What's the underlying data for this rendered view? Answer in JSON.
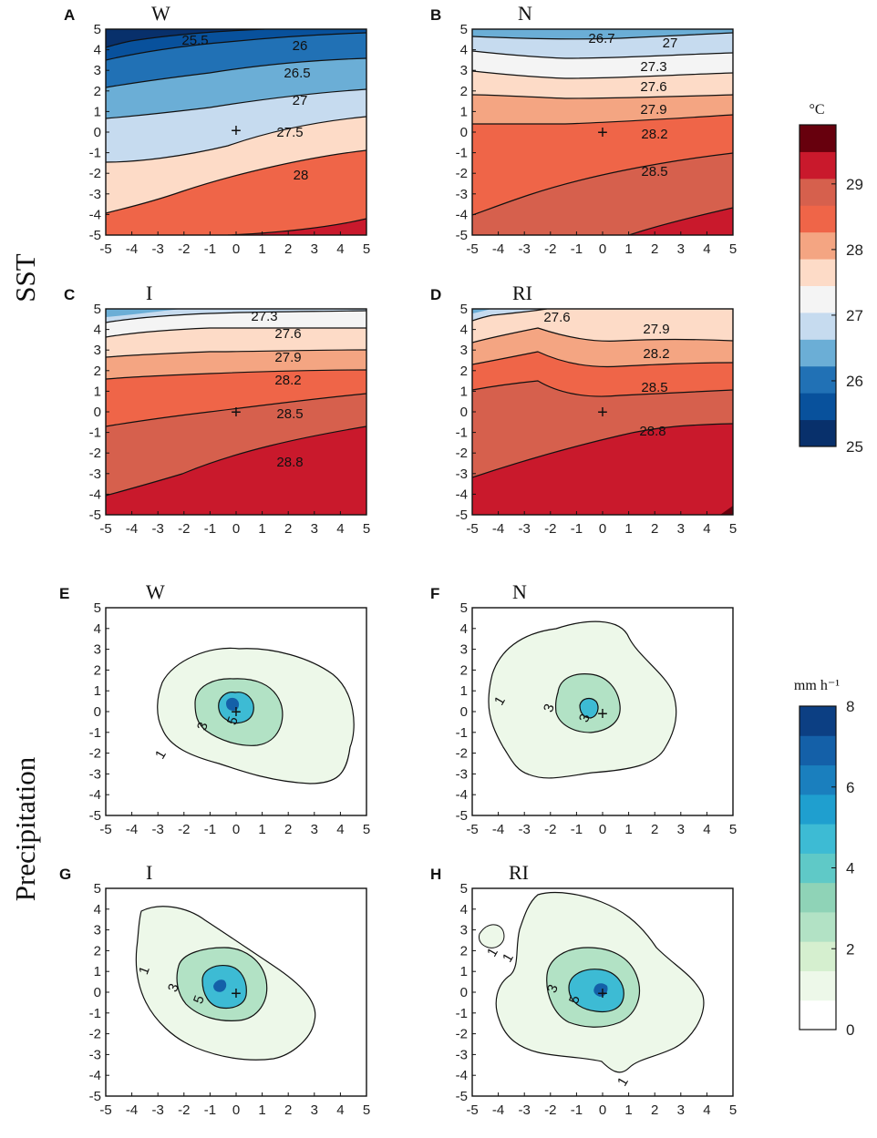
{
  "row_labels": {
    "sst": "SST",
    "precip": "Precipitation"
  },
  "colorbars": {
    "sst": {
      "unit": "°C",
      "ticks": [
        "25",
        "26",
        "27",
        "28",
        "29"
      ],
      "colors": [
        "#08306b",
        "#08519c",
        "#2171b5",
        "#6baed6",
        "#c6dbef",
        "#f4f4f4",
        "#fddbc7",
        "#f4a582",
        "#ef6548",
        "#d6604d",
        "#c9192c",
        "#67000d"
      ]
    },
    "precip": {
      "unit": "mm h⁻¹",
      "ticks": [
        "0",
        "2",
        "4",
        "6",
        "8"
      ],
      "colors": [
        "#ffffff",
        "#edf8e9",
        "#d5efcf",
        "#b2e2c5",
        "#8fd3b7",
        "#5fc9c7",
        "#3dbbd4",
        "#1f9fcf",
        "#1a7fbe",
        "#1460a8",
        "#0c3f83"
      ]
    }
  },
  "chart_data": [
    {
      "type": "contour",
      "panel": "A",
      "title": "W",
      "variable": "SST",
      "xlim": [
        -5,
        5
      ],
      "ylim": [
        -5,
        5
      ],
      "x_ticks": [
        "-5",
        "-4",
        "-3",
        "-2",
        "-1",
        "0",
        "1",
        "2",
        "3",
        "4",
        "5"
      ],
      "y_ticks": [
        "5",
        "4",
        "3",
        "2",
        "1",
        "0",
        "-1",
        "-2",
        "-3",
        "-4",
        "-5"
      ],
      "contour_labels": [
        "25.5",
        "26",
        "26.5",
        "27",
        "27.5",
        "28"
      ],
      "center_marker": "+"
    },
    {
      "type": "contour",
      "panel": "B",
      "title": "N",
      "variable": "SST",
      "xlim": [
        -5,
        5
      ],
      "ylim": [
        -5,
        5
      ],
      "x_ticks": [
        "-5",
        "-4",
        "-3",
        "-2",
        "-1",
        "0",
        "1",
        "2",
        "3",
        "4",
        "5"
      ],
      "y_ticks": [
        "5",
        "4",
        "3",
        "2",
        "1",
        "0",
        "-1",
        "-2",
        "-3",
        "-4",
        "-5"
      ],
      "contour_labels": [
        "26.7",
        "27",
        "27.3",
        "27.6",
        "27.9",
        "28.2",
        "28.5"
      ],
      "center_marker": "+"
    },
    {
      "type": "contour",
      "panel": "C",
      "title": "I",
      "variable": "SST",
      "xlim": [
        -5,
        5
      ],
      "ylim": [
        -5,
        5
      ],
      "x_ticks": [
        "-5",
        "-4",
        "-3",
        "-2",
        "-1",
        "0",
        "1",
        "2",
        "3",
        "4",
        "5"
      ],
      "y_ticks": [
        "5",
        "4",
        "3",
        "2",
        "1",
        "0",
        "-1",
        "-2",
        "-3",
        "-4",
        "-5"
      ],
      "contour_labels": [
        "27.3",
        "27.6",
        "27.9",
        "28.2",
        "28.5",
        "28.8"
      ],
      "center_marker": "+"
    },
    {
      "type": "contour",
      "panel": "D",
      "title": "RI",
      "variable": "SST",
      "xlim": [
        -5,
        5
      ],
      "ylim": [
        -5,
        5
      ],
      "x_ticks": [
        "-5",
        "-4",
        "-3",
        "-2",
        "-1",
        "0",
        "1",
        "2",
        "3",
        "4",
        "5"
      ],
      "y_ticks": [
        "5",
        "4",
        "3",
        "2",
        "1",
        "0",
        "-1",
        "-2",
        "-3",
        "-4",
        "-5"
      ],
      "contour_labels": [
        "27.6",
        "27.9",
        "28.2",
        "28.5",
        "28.8"
      ],
      "center_marker": "+"
    },
    {
      "type": "contour",
      "panel": "E",
      "title": "W",
      "variable": "Precipitation",
      "xlim": [
        -5,
        5
      ],
      "ylim": [
        -5,
        5
      ],
      "x_ticks": [
        "-5",
        "-4",
        "-3",
        "-2",
        "-1",
        "0",
        "1",
        "2",
        "3",
        "4",
        "5"
      ],
      "y_ticks": [
        "5",
        "4",
        "3",
        "2",
        "1",
        "0",
        "-1",
        "-2",
        "-3",
        "-4",
        "-5"
      ],
      "contour_labels": [
        "1",
        "3",
        "5"
      ],
      "center_marker": "+"
    },
    {
      "type": "contour",
      "panel": "F",
      "title": "N",
      "variable": "Precipitation",
      "xlim": [
        -5,
        5
      ],
      "ylim": [
        -5,
        5
      ],
      "x_ticks": [
        "-5",
        "-4",
        "-3",
        "-2",
        "-1",
        "0",
        "1",
        "2",
        "3",
        "4",
        "5"
      ],
      "y_ticks": [
        "5",
        "4",
        "3",
        "2",
        "1",
        "0",
        "-1",
        "-2",
        "-3",
        "-4",
        "-5"
      ],
      "contour_labels": [
        "1",
        "3",
        "3"
      ],
      "center_marker": "+"
    },
    {
      "type": "contour",
      "panel": "G",
      "title": "I",
      "variable": "Precipitation",
      "xlim": [
        -5,
        5
      ],
      "ylim": [
        -5,
        5
      ],
      "x_ticks": [
        "-5",
        "-4",
        "-3",
        "-2",
        "-1",
        "0",
        "1",
        "2",
        "3",
        "4",
        "5"
      ],
      "y_ticks": [
        "5",
        "4",
        "3",
        "2",
        "1",
        "0",
        "-1",
        "-2",
        "-3",
        "-4",
        "-5"
      ],
      "contour_labels": [
        "1",
        "3",
        "5"
      ],
      "center_marker": "+"
    },
    {
      "type": "contour",
      "panel": "H",
      "title": "RI",
      "variable": "Precipitation",
      "xlim": [
        -5,
        5
      ],
      "ylim": [
        -5,
        5
      ],
      "x_ticks": [
        "-5",
        "-4",
        "-3",
        "-2",
        "-1",
        "0",
        "1",
        "2",
        "3",
        "4",
        "5"
      ],
      "y_ticks": [
        "5",
        "4",
        "3",
        "2",
        "1",
        "0",
        "-1",
        "-2",
        "-3",
        "-4",
        "-5"
      ],
      "contour_labels": [
        "1",
        "1",
        "3",
        "5",
        "1"
      ],
      "center_marker": "+"
    }
  ]
}
